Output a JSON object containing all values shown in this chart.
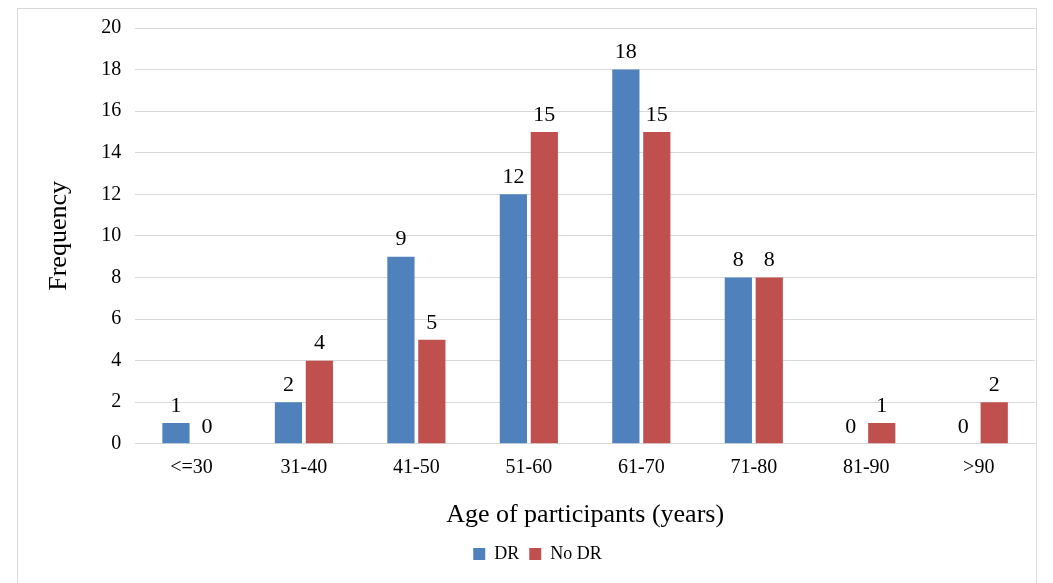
{
  "chart_data": {
    "type": "bar",
    "xlabel": "Age of participants (years)",
    "ylabel": "Frequency",
    "categories": [
      "<=30",
      "31-40",
      "41-50",
      "51-60",
      "61-70",
      "71-80",
      "81-90",
      ">90"
    ],
    "series": [
      {
        "name": "DR",
        "color": "#4f81bd",
        "values": [
          1,
          2,
          9,
          12,
          18,
          8,
          0,
          0
        ]
      },
      {
        "name": "No DR",
        "color": "#c0504d",
        "values": [
          0,
          4,
          5,
          15,
          15,
          8,
          1,
          2
        ]
      }
    ],
    "ylim": [
      0,
      20
    ],
    "yticks": [
      0,
      2,
      4,
      6,
      8,
      10,
      12,
      14,
      16,
      18,
      20
    ],
    "grid": "y",
    "legend": "bottom",
    "data_labels": true
  }
}
